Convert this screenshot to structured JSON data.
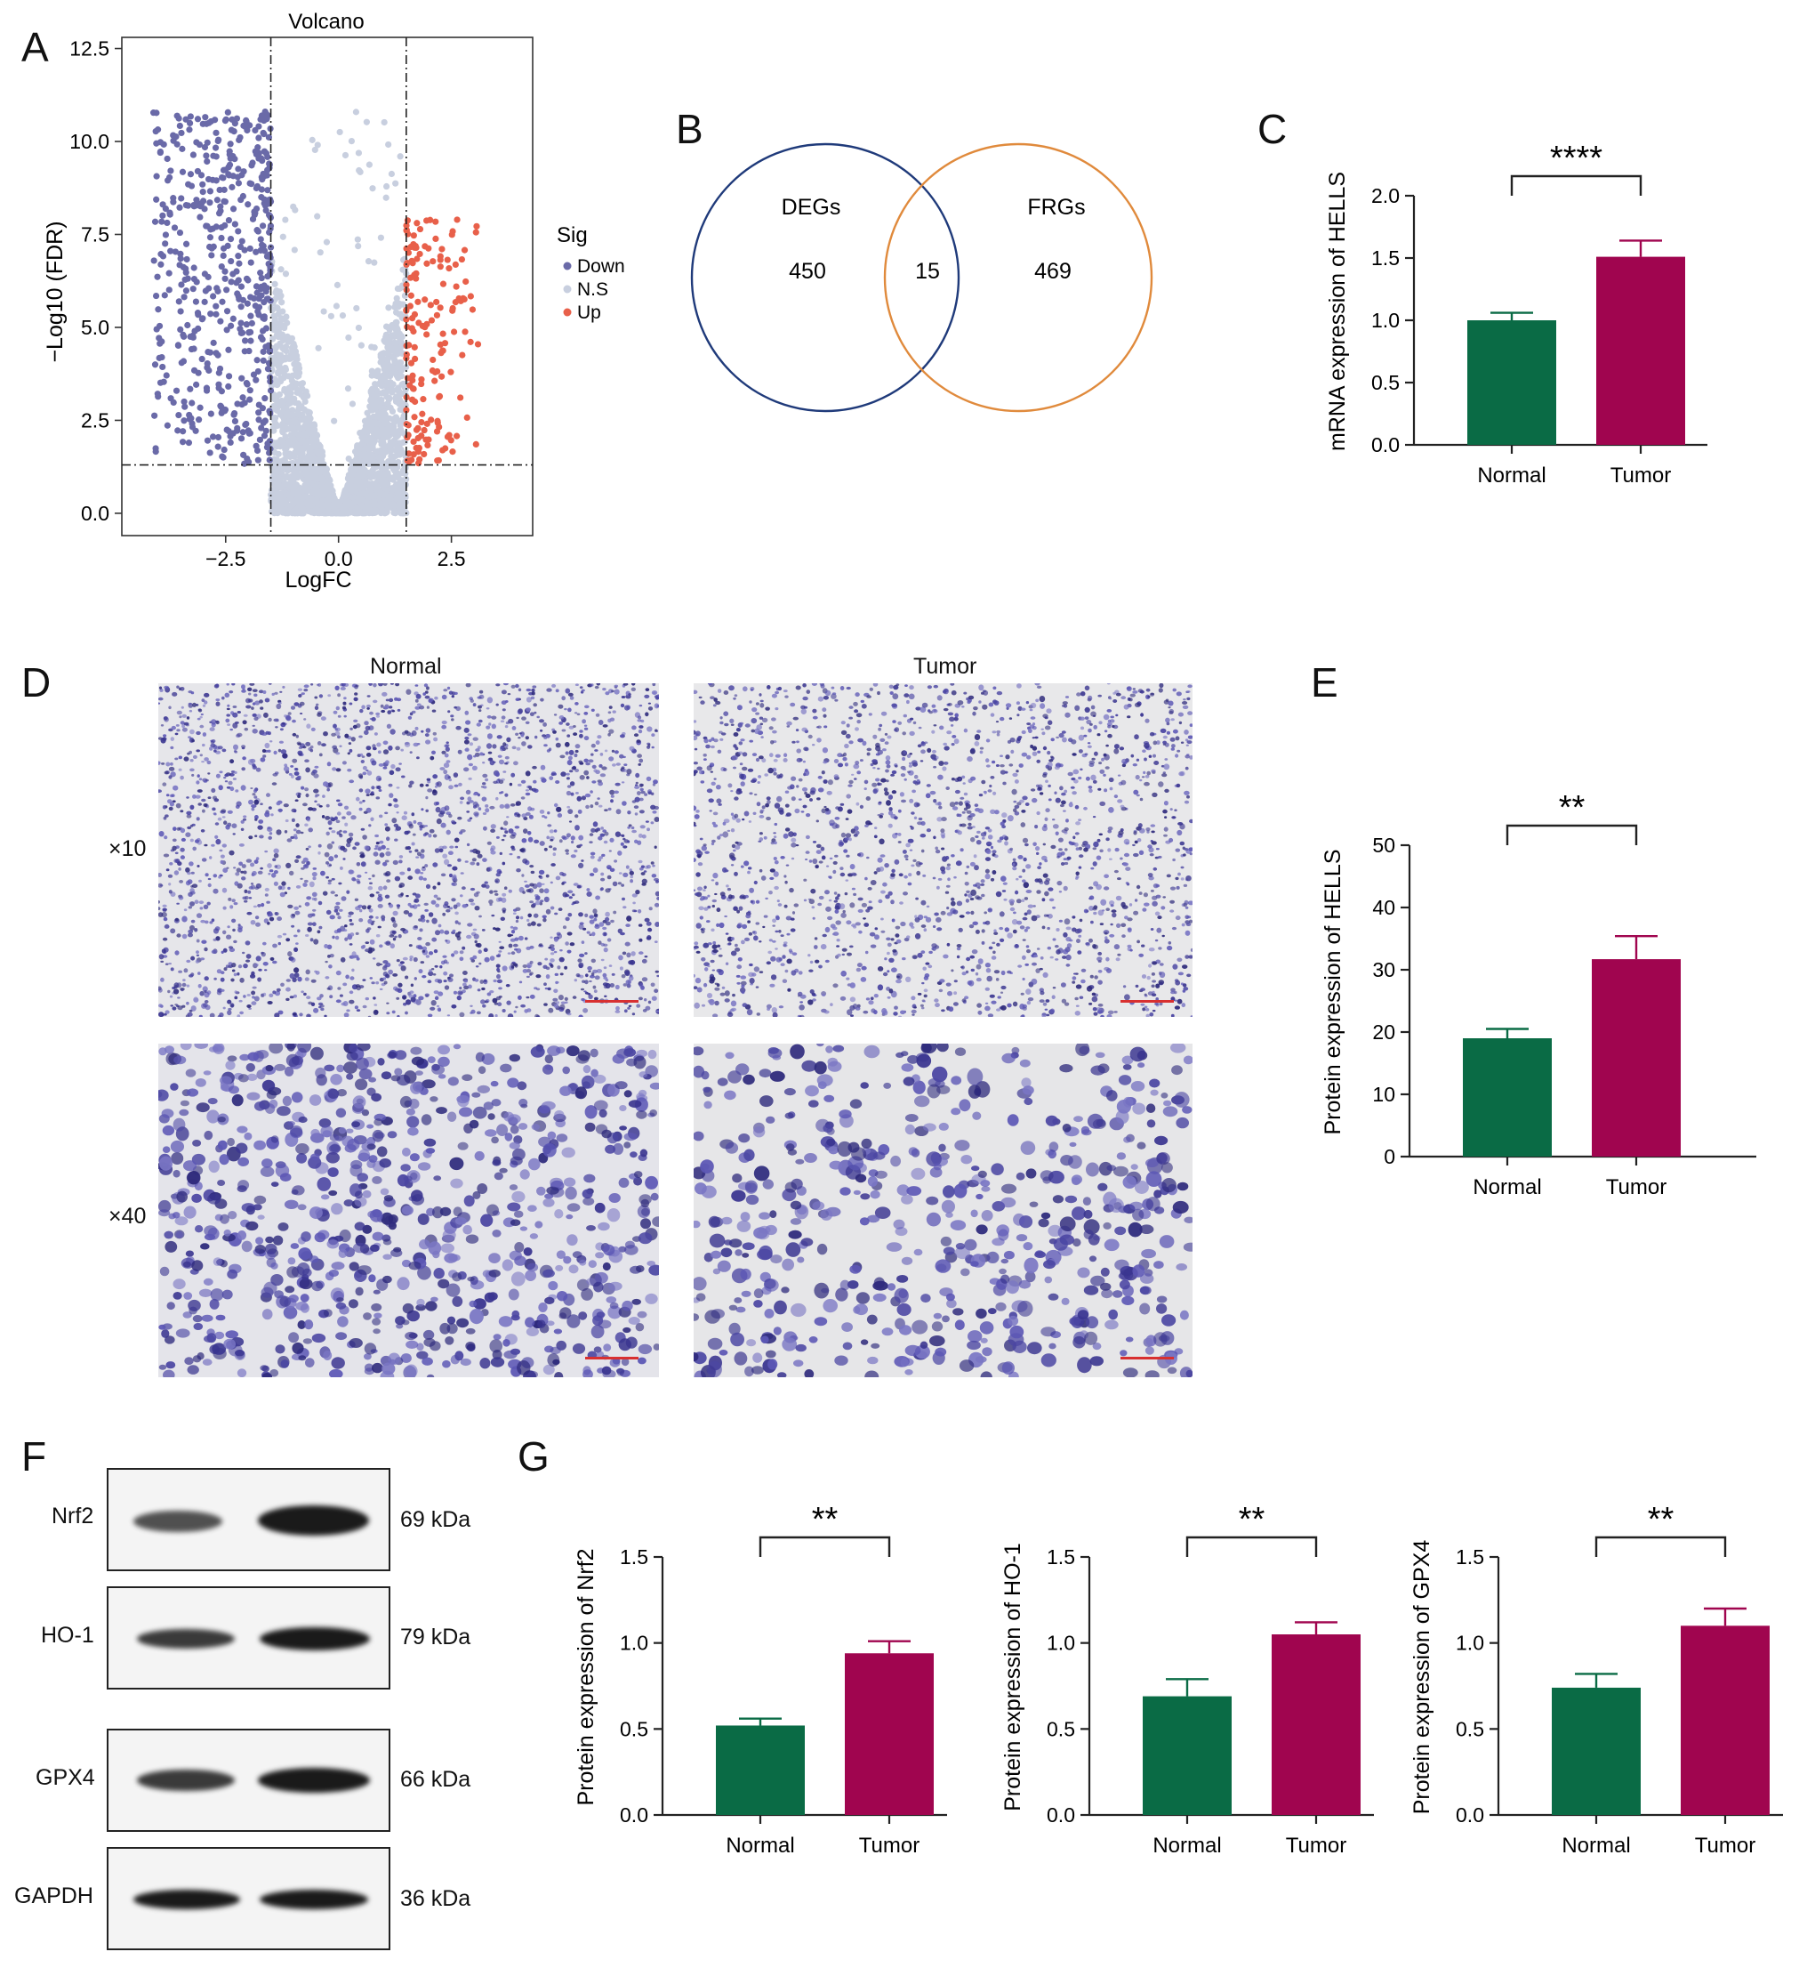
{
  "panels": {
    "A": "A",
    "B": "B",
    "C": "C",
    "D": "D",
    "E": "E",
    "F": "F",
    "G": "G"
  },
  "volcano": {
    "title": "Volcano",
    "xlabel": "LogFC",
    "ylabel": "−Log10 (FDR)",
    "xticks": [
      "−2.5",
      "0.0",
      "2.5"
    ],
    "yticks": [
      "0.0",
      "2.5",
      "5.0",
      "7.5",
      "10.0",
      "12.5"
    ],
    "legend_title": "Sig",
    "legend": [
      {
        "label": "Down",
        "color": "#6a6aa8"
      },
      {
        "label": "N.S",
        "color": "#c8cfdf"
      },
      {
        "label": "Up",
        "color": "#e8604a"
      }
    ],
    "thresholds": {
      "logfc": [
        -1.5,
        1.5
      ],
      "neglog10fdr": 1.3
    },
    "xlim": [
      -4.8,
      4.3
    ],
    "ylim": [
      -0.6,
      12.8
    ]
  },
  "venn": {
    "left_label": "DEGs",
    "left_count": "450",
    "right_label": "FRGs",
    "right_count": "469",
    "overlap_count": "15",
    "left_color": "#1f3a7a",
    "right_color": "#e08a3c"
  },
  "histology": {
    "col_normal": "Normal",
    "col_tumor": "Tumor",
    "row_10": "×10",
    "row_40": "×40"
  },
  "blot": {
    "rows": [
      {
        "label": "Nrf2",
        "kda": "69 kDa"
      },
      {
        "label": "HO-1",
        "kda": "79 kDa"
      },
      {
        "label": "GPX4",
        "kda": "66 kDa"
      },
      {
        "label": "GAPDH",
        "kda": "36 kDa"
      }
    ]
  },
  "colors": {
    "normal": "#0a6b45",
    "tumor": "#a0054f"
  },
  "chart_data": [
    {
      "id": "C",
      "type": "bar",
      "categories": [
        "Normal",
        "Tumor"
      ],
      "values": [
        1.0,
        1.51
      ],
      "errors": [
        0.06,
        0.13
      ],
      "ylabel": "mRNA expression of HELLS",
      "ylim": [
        0,
        2.0
      ],
      "yticks": [
        "0.0",
        "0.5",
        "1.0",
        "1.5",
        "2.0"
      ],
      "significance": "****"
    },
    {
      "id": "E",
      "type": "bar",
      "categories": [
        "Normal",
        "Tumor"
      ],
      "values": [
        19,
        31.7
      ],
      "errors": [
        1.5,
        3.7
      ],
      "ylabel": "Protein expression of HELLS",
      "ylim": [
        0,
        50
      ],
      "yticks": [
        "0",
        "10",
        "20",
        "30",
        "40",
        "50"
      ],
      "significance": "**"
    },
    {
      "id": "G1",
      "type": "bar",
      "categories": [
        "Normal",
        "Tumor"
      ],
      "values": [
        0.52,
        0.94
      ],
      "errors": [
        0.04,
        0.07
      ],
      "ylabel": "Protein expression of Nrf2",
      "ylim": [
        0,
        1.5
      ],
      "yticks": [
        "0.0",
        "0.5",
        "1.0",
        "1.5"
      ],
      "significance": "**"
    },
    {
      "id": "G2",
      "type": "bar",
      "categories": [
        "Normal",
        "Tumor"
      ],
      "values": [
        0.69,
        1.05
      ],
      "errors": [
        0.1,
        0.07
      ],
      "ylabel": "Protein expression of HO-1",
      "ylim": [
        0,
        1.5
      ],
      "yticks": [
        "0.0",
        "0.5",
        "1.0",
        "1.5"
      ],
      "significance": "**"
    },
    {
      "id": "G3",
      "type": "bar",
      "categories": [
        "Normal",
        "Tumor"
      ],
      "values": [
        0.74,
        1.1
      ],
      "errors": [
        0.08,
        0.1
      ],
      "ylabel": "Protein expression of GPX4",
      "ylim": [
        0,
        1.5
      ],
      "yticks": [
        "0.0",
        "0.5",
        "1.0",
        "1.5"
      ],
      "significance": "**"
    }
  ]
}
